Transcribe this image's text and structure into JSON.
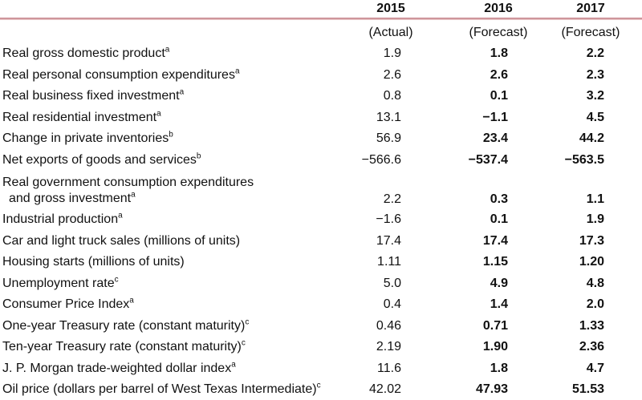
{
  "colors": {
    "header_rule_top": "#c6858b",
    "header_rule_bottom": "#e7c3c4",
    "bottom_rule": "#a23e4c",
    "text": "#111111",
    "background": "#ffffff"
  },
  "chart_data": {
    "type": "table",
    "columns": [
      {
        "year": "2015",
        "status": "(Actual)"
      },
      {
        "year": "2016",
        "status": "(Forecast)"
      },
      {
        "year": "2017",
        "status": "(Forecast)"
      }
    ],
    "rows": [
      {
        "label": "Real gross domestic product",
        "sup": "a",
        "values": [
          "1.9",
          "1.8",
          "2.2"
        ]
      },
      {
        "label": "Real personal consumption expenditures",
        "sup": "a",
        "values": [
          "2.6",
          "2.6",
          "2.3"
        ]
      },
      {
        "label": "Real business fixed investment",
        "sup": "a",
        "values": [
          "0.8",
          "0.1",
          "3.2"
        ]
      },
      {
        "label": "Real residential investment",
        "sup": "a",
        "values": [
          "13.1",
          "−1.1",
          "4.5"
        ]
      },
      {
        "label": "Change in private inventories",
        "sup": "b",
        "values": [
          "56.9",
          "23.4",
          "44.2"
        ]
      },
      {
        "label": "Net exports of goods and services",
        "sup": "b",
        "values": [
          "−566.6",
          "−537.4",
          "−563.5"
        ]
      },
      {
        "label": "Real government consumption expenditures",
        "label2": "and gross investment",
        "sup": "a",
        "values": [
          "2.2",
          "0.3",
          "1.1"
        ]
      },
      {
        "label": "Industrial production",
        "sup": "a",
        "values": [
          "−1.6",
          "0.1",
          "1.9"
        ]
      },
      {
        "label": "Car and light truck sales (millions of units)",
        "values": [
          "17.4",
          "17.4",
          "17.3"
        ]
      },
      {
        "label": "Housing starts (millions of units)",
        "values": [
          "1.11",
          "1.15",
          "1.20"
        ]
      },
      {
        "label": "Unemployment rate",
        "sup": "c",
        "values": [
          "5.0",
          "4.9",
          "4.8"
        ]
      },
      {
        "label": "Consumer Price Index",
        "sup": "a",
        "values": [
          "0.4",
          "1.4",
          "2.0"
        ]
      },
      {
        "label": "One-year Treasury rate (constant maturity)",
        "sup": "c",
        "values": [
          "0.46",
          "0.71",
          "1.33"
        ]
      },
      {
        "label": "Ten-year Treasury rate (constant maturity)",
        "sup": "c",
        "values": [
          "2.19",
          "1.90",
          "2.36"
        ]
      },
      {
        "label": "J. P. Morgan trade-weighted dollar index",
        "sup": "a",
        "values": [
          "11.6",
          "1.8",
          "4.7"
        ]
      },
      {
        "label": "Oil price (dollars per barrel of West Texas Intermediate)",
        "sup": "c",
        "values": [
          "42.02",
          "47.93",
          "51.53"
        ]
      }
    ]
  }
}
